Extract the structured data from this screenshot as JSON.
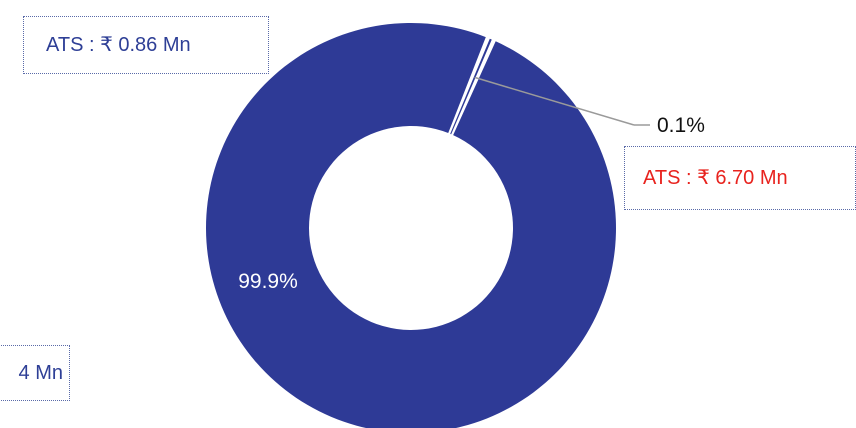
{
  "callouts": {
    "top_left": "ATS : ₹ 0.86 Mn",
    "bottom_left": "4 Mn",
    "right": "ATS : ₹ 6.70 Mn"
  },
  "colors": {
    "main_series": "#2e3a96",
    "right_callout_text": "#e8231e",
    "left_callout_text": "#2e3f96"
  },
  "chart_data": {
    "type": "pie",
    "variant": "donut",
    "values": [
      99.9,
      0.1
    ],
    "labels": [
      "99.9%",
      "0.1%"
    ],
    "legend": "none",
    "grid": false
  }
}
